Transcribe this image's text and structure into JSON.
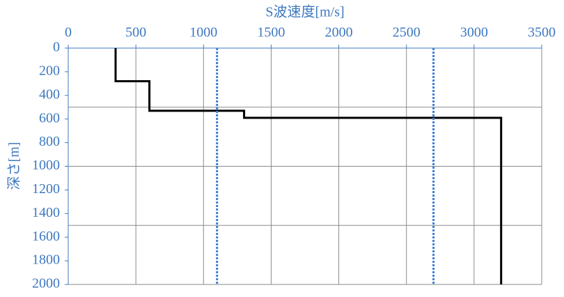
{
  "chart_data": {
    "type": "line",
    "title": "S波速度[m/s]",
    "y_label": "深さ[m]",
    "xlim": [
      0,
      3500
    ],
    "xticks": [
      0,
      500,
      1000,
      1500,
      2000,
      2500,
      3000,
      3500
    ],
    "ylim": [
      0,
      2000
    ],
    "yticks": [
      0,
      200,
      400,
      600,
      800,
      1000,
      1200,
      1400,
      1600,
      1800,
      2000
    ],
    "y_inverted": true,
    "xgrid": [
      500,
      1000,
      1500,
      2000,
      2500,
      3000,
      3500
    ],
    "ygrid": [
      500,
      1000,
      1500,
      2000
    ],
    "series": [
      {
        "color": "#000000",
        "dash": "solid",
        "x": [
          350,
          350,
          600,
          600,
          1300,
          1300,
          3200,
          3200
        ],
        "values": [
          0,
          280,
          280,
          530,
          530,
          590,
          590,
          2000
        ]
      },
      {
        "color": "#3a7fd5",
        "dash": "dotted",
        "x": [
          1100,
          1100
        ],
        "values": [
          0,
          2000
        ]
      },
      {
        "color": "#3a7fd5",
        "dash": "dotted",
        "x": [
          2700,
          2700
        ],
        "values": [
          0,
          2000
        ]
      }
    ]
  }
}
